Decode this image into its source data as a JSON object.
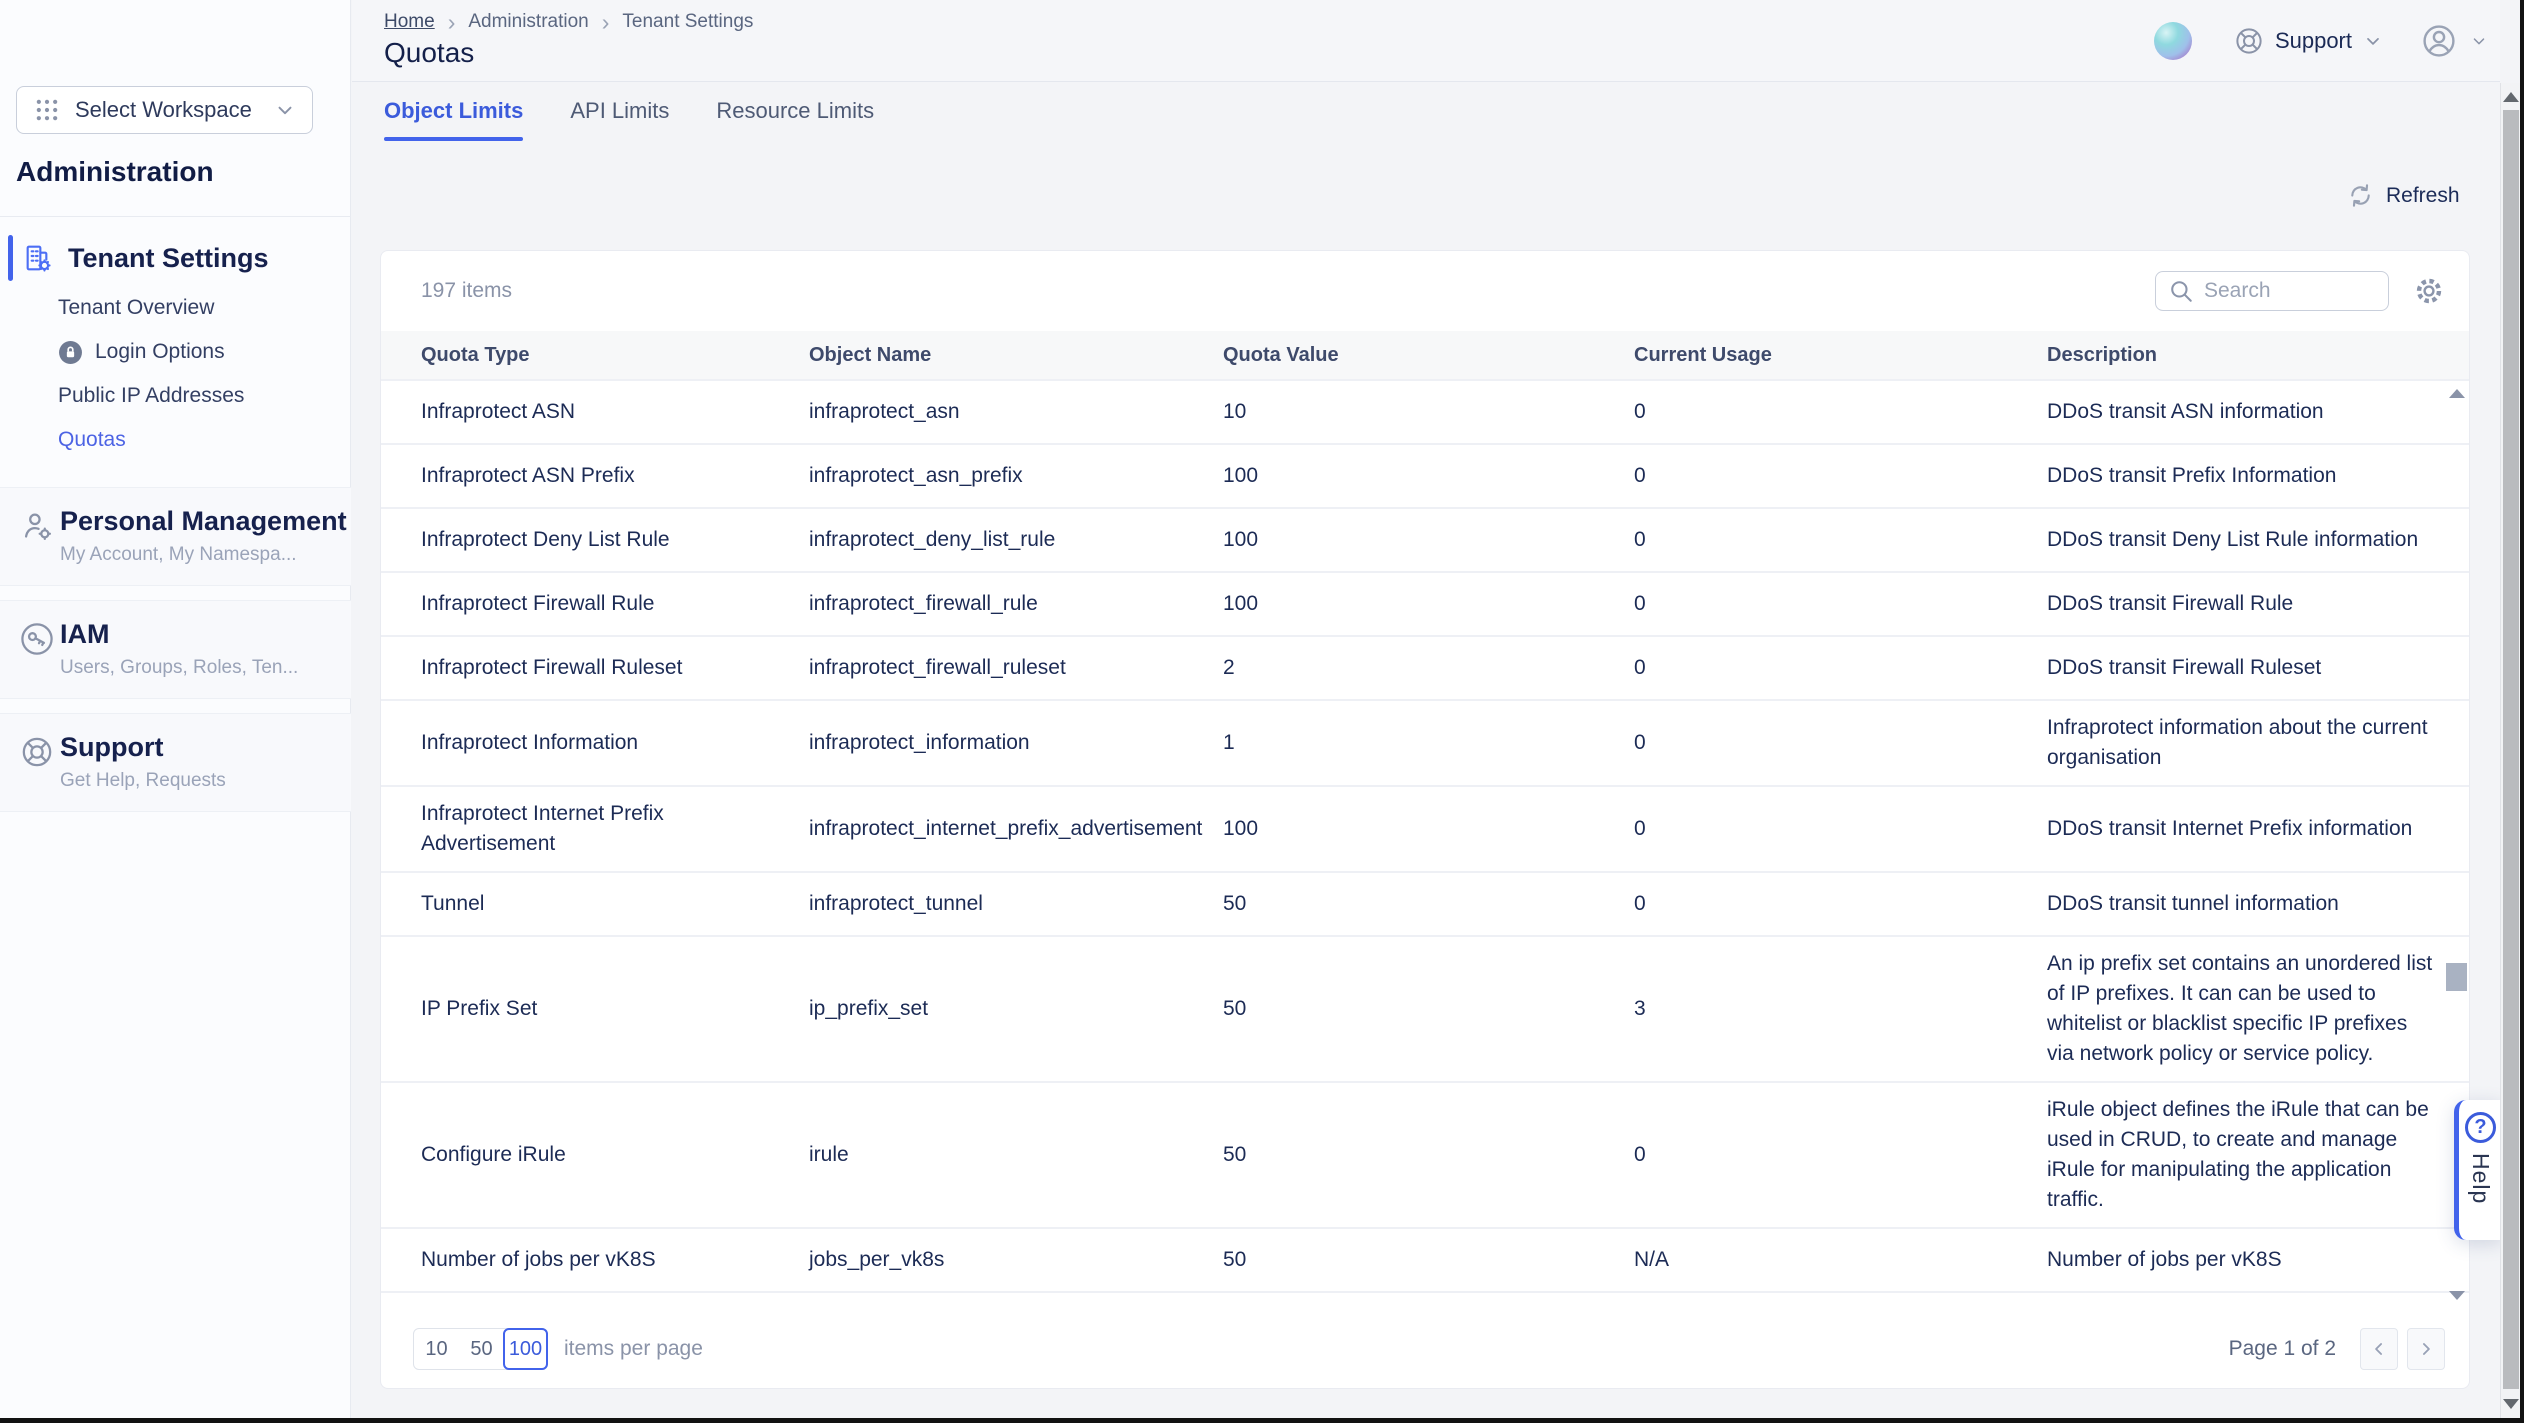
{
  "header": {
    "breadcrumb": [
      "Home",
      "Administration",
      "Tenant Settings"
    ],
    "title": "Quotas",
    "support_label": "Support"
  },
  "sidebar": {
    "workspace_selector": "Select Workspace",
    "section_title": "Administration",
    "tenant_group": {
      "label": "Tenant Settings",
      "icon": "building-gear-icon",
      "children": [
        {
          "label": "Tenant Overview"
        },
        {
          "label": "Login Options",
          "icon": "lock-icon"
        },
        {
          "label": "Public IP Addresses"
        },
        {
          "label": "Quotas",
          "active": true
        }
      ]
    },
    "sections": [
      {
        "label": "Personal Management",
        "subtitle": "My Account, My Namespa...",
        "icon": "person-gear-icon"
      },
      {
        "label": "IAM",
        "subtitle": "Users, Groups, Roles, Ten...",
        "icon": "key-icon"
      },
      {
        "label": "Support",
        "subtitle": "Get Help, Requests",
        "icon": "lifebuoy-icon"
      }
    ]
  },
  "tabs": [
    {
      "label": "Object Limits",
      "active": true
    },
    {
      "label": "API Limits",
      "active": false
    },
    {
      "label": "Resource Limits",
      "active": false
    }
  ],
  "toolbar": {
    "refresh_label": "Refresh"
  },
  "table": {
    "items_count": "197 items",
    "search_placeholder": "Search",
    "columns": [
      "Quota Type",
      "Object Name",
      "Quota Value",
      "Current Usage",
      "Description"
    ],
    "rows": [
      [
        "Infraprotect ASN",
        "infraprotect_asn",
        "10",
        "0",
        "DDoS transit ASN information"
      ],
      [
        "Infraprotect ASN Prefix",
        "infraprotect_asn_prefix",
        "100",
        "0",
        "DDoS transit Prefix Information"
      ],
      [
        "Infraprotect Deny List Rule",
        "infraprotect_deny_list_rule",
        "100",
        "0",
        "DDoS transit Deny List Rule information"
      ],
      [
        "Infraprotect Firewall Rule",
        "infraprotect_firewall_rule",
        "100",
        "0",
        "DDoS transit Firewall Rule"
      ],
      [
        "Infraprotect Firewall Ruleset",
        "infraprotect_firewall_ruleset",
        "2",
        "0",
        "DDoS transit Firewall Ruleset"
      ],
      [
        "Infraprotect Information",
        "infraprotect_information",
        "1",
        "0",
        "Infraprotect information about the current organisation"
      ],
      [
        "Infraprotect Internet Prefix Advertisement",
        "infraprotect_internet_prefix_advertisement",
        "100",
        "0",
        "DDoS transit Internet Prefix information"
      ],
      [
        "Tunnel",
        "infraprotect_tunnel",
        "50",
        "0",
        "DDoS transit tunnel information"
      ],
      [
        "IP Prefix Set",
        "ip_prefix_set",
        "50",
        "3",
        "An ip prefix set contains an unordered list of IP prefixes. It can can be used to whitelist or blacklist specific IP prefixes via network policy or service policy."
      ],
      [
        "Configure iRule",
        "irule",
        "50",
        "0",
        "iRule object defines the iRule that can be used in CRUD, to create and manage iRule for manipulating the application traffic."
      ],
      [
        "Number of jobs per vK8S",
        "jobs_per_vk8s",
        "50",
        "N/A",
        "Number of jobs per vK8S"
      ]
    ]
  },
  "pagination": {
    "page_sizes": [
      "10",
      "50",
      "100"
    ],
    "active_page_size": "100",
    "items_per_page_label": "items per page",
    "page_label": "Page 1 of 2"
  },
  "help_tab": {
    "label": "Help"
  },
  "colors": {
    "accent_blue": "#4263eb",
    "active_link_blue": "#4c63e4",
    "navy_text": "#1c2b55",
    "heading_navy": "#16214d",
    "muted_text": "#8a93a8",
    "header_bg": "#f5f6f9",
    "page_bg": "#f3f4f7",
    "sidebar_bg": "#fbfcfe",
    "card_bg": "#ffffff",
    "table_header_bg": "#f7f8f9",
    "row_divider": "#eef0f5"
  }
}
